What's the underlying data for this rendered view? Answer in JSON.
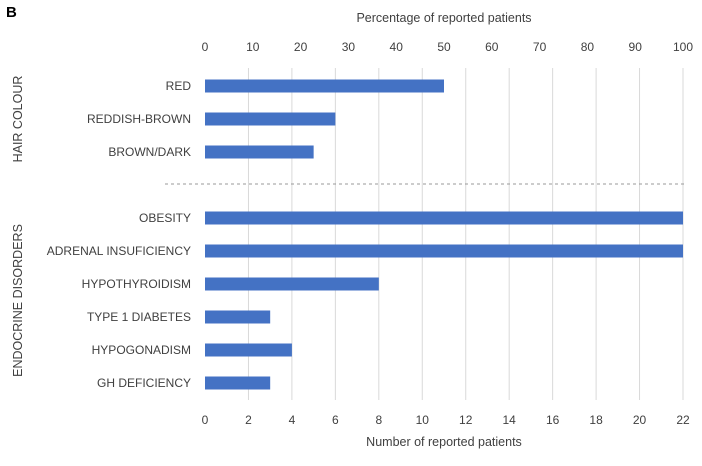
{
  "panel_label": "B",
  "chart_data": {
    "type": "bar",
    "orientation": "horizontal",
    "top_axis_label": "Percentage of reported patients",
    "top_axis_ticks": [
      0,
      10,
      20,
      30,
      40,
      50,
      60,
      70,
      80,
      90,
      100
    ],
    "xlabel": "Number of reported patients",
    "xlim": [
      0,
      22
    ],
    "xticks": [
      0,
      2,
      4,
      6,
      8,
      10,
      12,
      14,
      16,
      18,
      20,
      22
    ],
    "grid": "vertical",
    "bar_color": "#4472C4",
    "groups": [
      {
        "name": "HAIR COLOUR",
        "categories": [
          "RED",
          "REDDISH-BROWN",
          "BROWN/DARK"
        ],
        "values": [
          11,
          6,
          5
        ]
      },
      {
        "name": "ENDOCRINE DISORDERS",
        "categories": [
          "OBESITY",
          "ADRENAL INSUFICIENCY",
          "HYPOTHYROIDISM",
          "TYPE 1 DIABETES",
          "HYPOGONADISM",
          "GH DEFICIENCY"
        ],
        "values": [
          22,
          22,
          8,
          3,
          4,
          3
        ]
      }
    ]
  }
}
